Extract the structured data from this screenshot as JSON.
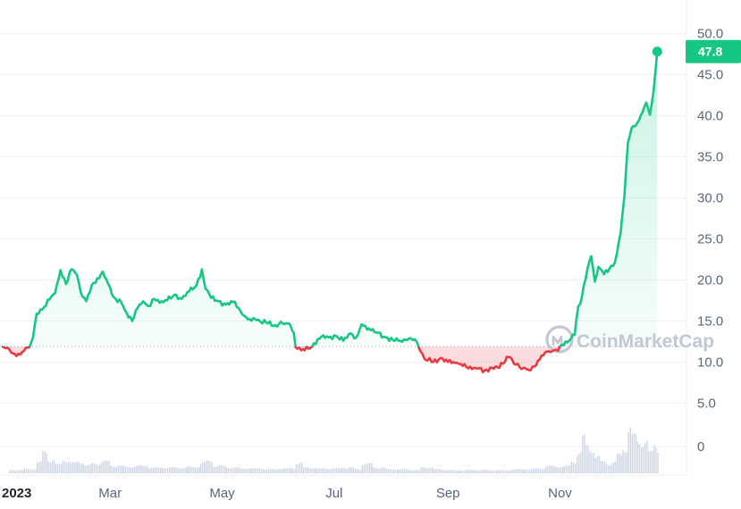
{
  "chart_data": {
    "type": "line",
    "brand_watermark": "CoinMarketCap",
    "colors": {
      "up": "#16c784",
      "down": "#ea3943",
      "grid": "#eff2f5",
      "volume": "#cfd6e4",
      "badge": "#16c784"
    },
    "reference_price": 11.9,
    "current_price_label": "47.8",
    "yticks": [
      {
        "value": 50,
        "label": "50.0"
      },
      {
        "value": 45,
        "label": "45.0"
      },
      {
        "value": 40,
        "label": "40.0"
      },
      {
        "value": 35,
        "label": "35.0"
      },
      {
        "value": 30,
        "label": "30.0"
      },
      {
        "value": 25,
        "label": "25.0"
      },
      {
        "value": 20,
        "label": "20.0"
      },
      {
        "value": 15,
        "label": "15.0"
      },
      {
        "value": 10,
        "label": "10.0"
      }
    ],
    "volume_ticks": [
      {
        "value": 5,
        "label": "5.0"
      },
      {
        "value": 0,
        "label": "0"
      }
    ],
    "xticks": [
      {
        "date": "2023-01-01",
        "label": "2023",
        "year": true
      },
      {
        "date": "2023-03-01",
        "label": "Mar"
      },
      {
        "date": "2023-05-01",
        "label": "May"
      },
      {
        "date": "2023-07-01",
        "label": "Jul"
      },
      {
        "date": "2023-09-01",
        "label": "Sep"
      },
      {
        "date": "2023-11-01",
        "label": "Nov"
      }
    ],
    "x_range": [
      "2023-01-01",
      "2024-01-05"
    ],
    "y_range": [
      5,
      52
    ],
    "series": [
      {
        "points": [
          [
            "2023-01-01",
            11.9
          ],
          [
            "2023-01-05",
            11.6
          ],
          [
            "2023-01-08",
            11.0
          ],
          [
            "2023-01-11",
            10.9
          ],
          [
            "2023-01-14",
            11.7
          ],
          [
            "2023-01-16",
            11.8
          ],
          [
            "2023-01-18",
            13.0
          ],
          [
            "2023-01-20",
            15.9
          ],
          [
            "2023-01-24",
            16.7
          ],
          [
            "2023-01-27",
            17.6
          ],
          [
            "2023-01-30",
            18.4
          ],
          [
            "2023-02-02",
            21.2
          ],
          [
            "2023-02-05",
            19.5
          ],
          [
            "2023-02-08",
            21.3
          ],
          [
            "2023-02-11",
            20.6
          ],
          [
            "2023-02-13",
            18.5
          ],
          [
            "2023-02-16",
            17.4
          ],
          [
            "2023-02-19",
            19.4
          ],
          [
            "2023-02-22",
            20.2
          ],
          [
            "2023-02-25",
            21.0
          ],
          [
            "2023-02-28",
            19.5
          ],
          [
            "2023-03-03",
            17.9
          ],
          [
            "2023-03-07",
            17.3
          ],
          [
            "2023-03-10",
            16.0
          ],
          [
            "2023-03-13",
            15.0
          ],
          [
            "2023-03-16",
            16.6
          ],
          [
            "2023-03-19",
            17.4
          ],
          [
            "2023-03-22",
            16.8
          ],
          [
            "2023-03-25",
            17.7
          ],
          [
            "2023-03-28",
            17.2
          ],
          [
            "2023-04-01",
            17.5
          ],
          [
            "2023-04-05",
            18.2
          ],
          [
            "2023-04-09",
            17.7
          ],
          [
            "2023-04-13",
            18.6
          ],
          [
            "2023-04-17",
            19.3
          ],
          [
            "2023-04-20",
            21.3
          ],
          [
            "2023-04-22",
            18.9
          ],
          [
            "2023-04-25",
            17.8
          ],
          [
            "2023-04-29",
            17.4
          ],
          [
            "2023-05-03",
            17.0
          ],
          [
            "2023-05-07",
            17.3
          ],
          [
            "2023-05-10",
            16.6
          ],
          [
            "2023-05-12",
            15.8
          ],
          [
            "2023-05-15",
            15.2
          ],
          [
            "2023-05-20",
            15.1
          ],
          [
            "2023-05-25",
            14.8
          ],
          [
            "2023-05-30",
            14.5
          ],
          [
            "2023-06-03",
            14.7
          ],
          [
            "2023-06-07",
            14.6
          ],
          [
            "2023-06-09",
            13.6
          ],
          [
            "2023-06-10",
            11.8
          ],
          [
            "2023-06-14",
            11.6
          ],
          [
            "2023-06-18",
            11.7
          ],
          [
            "2023-06-21",
            12.2
          ],
          [
            "2023-06-24",
            13.1
          ],
          [
            "2023-06-28",
            13.0
          ],
          [
            "2023-07-02",
            13.2
          ],
          [
            "2023-07-06",
            12.6
          ],
          [
            "2023-07-10",
            13.5
          ],
          [
            "2023-07-13",
            13.0
          ],
          [
            "2023-07-16",
            14.6
          ],
          [
            "2023-07-20",
            14.1
          ],
          [
            "2023-07-24",
            13.6
          ],
          [
            "2023-07-28",
            13.1
          ],
          [
            "2023-08-02",
            12.7
          ],
          [
            "2023-08-06",
            12.6
          ],
          [
            "2023-08-11",
            12.9
          ],
          [
            "2023-08-15",
            12.5
          ],
          [
            "2023-08-17",
            11.3
          ],
          [
            "2023-08-19",
            10.5
          ],
          [
            "2023-08-24",
            10.0
          ],
          [
            "2023-08-28",
            10.5
          ],
          [
            "2023-09-01",
            10.0
          ],
          [
            "2023-09-06",
            9.9
          ],
          [
            "2023-09-11",
            9.4
          ],
          [
            "2023-09-16",
            9.3
          ],
          [
            "2023-09-21",
            9.0
          ],
          [
            "2023-09-26",
            9.2
          ],
          [
            "2023-10-01",
            9.8
          ],
          [
            "2023-10-04",
            10.6
          ],
          [
            "2023-10-08",
            9.7
          ],
          [
            "2023-10-12",
            9.3
          ],
          [
            "2023-10-16",
            9.0
          ],
          [
            "2023-10-19",
            9.6
          ],
          [
            "2023-10-22",
            10.8
          ],
          [
            "2023-10-26",
            11.3
          ],
          [
            "2023-10-30",
            11.5
          ],
          [
            "2023-11-02",
            12.1
          ],
          [
            "2023-11-06",
            12.6
          ],
          [
            "2023-11-09",
            13.3
          ],
          [
            "2023-11-11",
            16.8
          ],
          [
            "2023-11-13",
            18.0
          ],
          [
            "2023-11-16",
            21.4
          ],
          [
            "2023-11-18",
            22.9
          ],
          [
            "2023-11-20",
            19.8
          ],
          [
            "2023-11-22",
            21.6
          ],
          [
            "2023-11-25",
            20.7
          ],
          [
            "2023-11-28",
            21.4
          ],
          [
            "2023-12-01",
            22.2
          ],
          [
            "2023-12-04",
            25.7
          ],
          [
            "2023-12-06",
            30.0
          ],
          [
            "2023-12-08",
            36.7
          ],
          [
            "2023-12-10",
            38.5
          ],
          [
            "2023-12-13",
            39.1
          ],
          [
            "2023-12-16",
            40.4
          ],
          [
            "2023-12-18",
            41.6
          ],
          [
            "2023-12-20",
            40.1
          ],
          [
            "2023-12-22",
            43.0
          ],
          [
            "2023-12-24",
            47.8
          ]
        ]
      }
    ],
    "volume": [
      [
        "2023-01-05",
        0.4
      ],
      [
        "2023-01-13",
        0.5
      ],
      [
        "2023-01-20",
        1.4
      ],
      [
        "2023-01-23",
        2.6
      ],
      [
        "2023-01-26",
        1.6
      ],
      [
        "2023-01-30",
        1.1
      ],
      [
        "2023-02-03",
        1.6
      ],
      [
        "2023-02-07",
        1.3
      ],
      [
        "2023-02-11",
        1.4
      ],
      [
        "2023-02-15",
        1.0
      ],
      [
        "2023-02-19",
        1.2
      ],
      [
        "2023-02-24",
        1.5
      ],
      [
        "2023-03-01",
        0.9
      ],
      [
        "2023-03-08",
        0.8
      ],
      [
        "2023-03-15",
        0.9
      ],
      [
        "2023-03-22",
        0.7
      ],
      [
        "2023-03-29",
        0.7
      ],
      [
        "2023-04-05",
        0.7
      ],
      [
        "2023-04-12",
        0.8
      ],
      [
        "2023-04-19",
        1.3
      ],
      [
        "2023-04-22",
        1.5
      ],
      [
        "2023-04-26",
        0.9
      ],
      [
        "2023-05-03",
        0.7
      ],
      [
        "2023-05-10",
        0.6
      ],
      [
        "2023-05-17",
        0.6
      ],
      [
        "2023-05-24",
        0.5
      ],
      [
        "2023-05-31",
        0.6
      ],
      [
        "2023-06-07",
        0.6
      ],
      [
        "2023-06-10",
        1.3
      ],
      [
        "2023-06-14",
        0.7
      ],
      [
        "2023-06-21",
        0.6
      ],
      [
        "2023-06-28",
        0.6
      ],
      [
        "2023-07-05",
        0.7
      ],
      [
        "2023-07-12",
        0.5
      ],
      [
        "2023-07-16",
        1.2
      ],
      [
        "2023-07-22",
        0.7
      ],
      [
        "2023-07-29",
        0.5
      ],
      [
        "2023-08-05",
        0.5
      ],
      [
        "2023-08-12",
        0.4
      ],
      [
        "2023-08-17",
        0.7
      ],
      [
        "2023-08-24",
        0.5
      ],
      [
        "2023-08-31",
        0.4
      ],
      [
        "2023-09-07",
        0.4
      ],
      [
        "2023-09-14",
        0.4
      ],
      [
        "2023-09-21",
        0.4
      ],
      [
        "2023-09-28",
        0.4
      ],
      [
        "2023-10-05",
        0.5
      ],
      [
        "2023-10-12",
        0.5
      ],
      [
        "2023-10-19",
        0.6
      ],
      [
        "2023-10-24",
        0.9
      ],
      [
        "2023-10-29",
        0.8
      ],
      [
        "2023-11-03",
        0.9
      ],
      [
        "2023-11-07",
        1.4
      ],
      [
        "2023-11-10",
        2.6
      ],
      [
        "2023-11-13",
        4.5
      ],
      [
        "2023-11-15",
        3.3
      ],
      [
        "2023-11-17",
        2.9
      ],
      [
        "2023-11-20",
        2.1
      ],
      [
        "2023-11-23",
        1.4
      ],
      [
        "2023-11-26",
        1.1
      ],
      [
        "2023-11-29",
        1.4
      ],
      [
        "2023-12-02",
        2.3
      ],
      [
        "2023-12-05",
        3.0
      ],
      [
        "2023-12-08",
        5.6
      ],
      [
        "2023-12-10",
        4.6
      ],
      [
        "2023-12-13",
        3.8
      ],
      [
        "2023-12-16",
        4.0
      ],
      [
        "2023-12-19",
        2.6
      ],
      [
        "2023-12-22",
        3.4
      ],
      [
        "2023-12-24",
        2.9
      ]
    ]
  }
}
